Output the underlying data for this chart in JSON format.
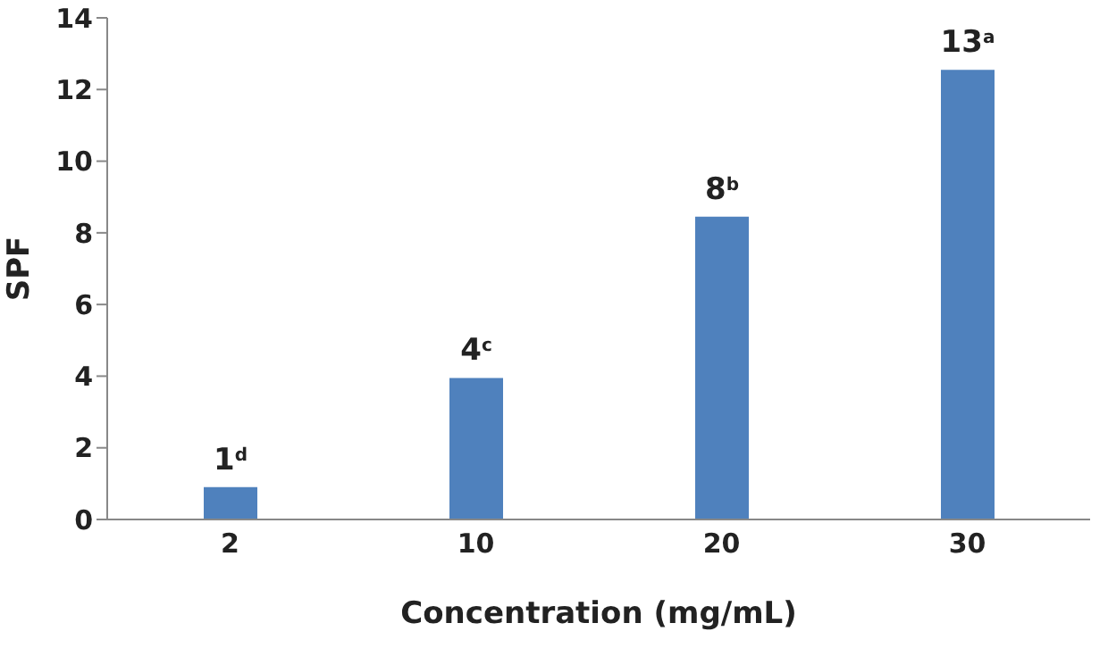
{
  "chart_data": {
    "type": "bar",
    "xlabel": "Concentration (mg/mL)",
    "ylabel": "SPF",
    "categories": [
      "2",
      "10",
      "20",
      "30"
    ],
    "values": [
      0.9,
      3.95,
      8.45,
      12.55
    ],
    "value_labels": [
      "1$^{d}$",
      "4$^{c}$",
      "8$^{b}$",
      "13$^{a}$"
    ],
    "color": "#4f81bd",
    "ylim": [
      0,
      14
    ],
    "yticks": [
      0,
      2,
      4,
      6,
      8,
      10,
      12,
      14
    ],
    "grid": false,
    "legend": false
  }
}
